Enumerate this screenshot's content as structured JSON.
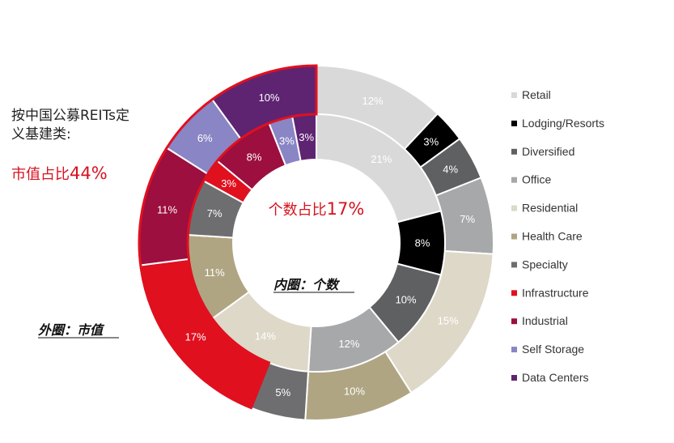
{
  "annotations": {
    "left_title_line1": "按中国公募REITs定",
    "left_title_line2": "义基建类:",
    "market_share_prefix": "市值占比",
    "market_share_value": "44%",
    "count_share_prefix": "个数占比",
    "count_share_value": "17%",
    "inner_ring_label": "内圈：个数",
    "outer_ring_label": "外圈：市值"
  },
  "chart_data": {
    "type": "donut",
    "categories": [
      "Retail",
      "Lodging/Resorts",
      "Diversified",
      "Office",
      "Residential",
      "Health Care",
      "Specialty",
      "Infrastructure",
      "Industrial",
      "Self Storage",
      "Data Centers"
    ],
    "colors": [
      "#d9d9d9",
      "#000000",
      "#5f6062",
      "#a7a8aa",
      "#ddd8c8",
      "#b0a583",
      "#6e6e70",
      "#e0101f",
      "#9c0f3f",
      "#8a85c4",
      "#5e2472"
    ],
    "series": [
      {
        "name": "内圈：个数",
        "ring": "inner",
        "values": [
          21,
          8,
          10,
          12,
          14,
          11,
          7,
          3,
          8,
          3,
          3
        ],
        "labels": [
          "21%",
          "8%",
          "10%",
          "12%",
          "14%",
          "11%",
          "7%",
          "3%",
          "8%",
          "3%",
          "3%"
        ]
      },
      {
        "name": "外圈：市值",
        "ring": "outer",
        "values": [
          12,
          3,
          4,
          7,
          15,
          10,
          5,
          17,
          11,
          6,
          10
        ],
        "labels": [
          "12%",
          "3%",
          "4%",
          "7%",
          "15%",
          "10%",
          "5%",
          "17%",
          "11%",
          "6%",
          "10%"
        ]
      }
    ],
    "highlight_categories": [
      "Infrastructure",
      "Industrial",
      "Self Storage",
      "Data Centers"
    ],
    "legend_position": "right"
  }
}
